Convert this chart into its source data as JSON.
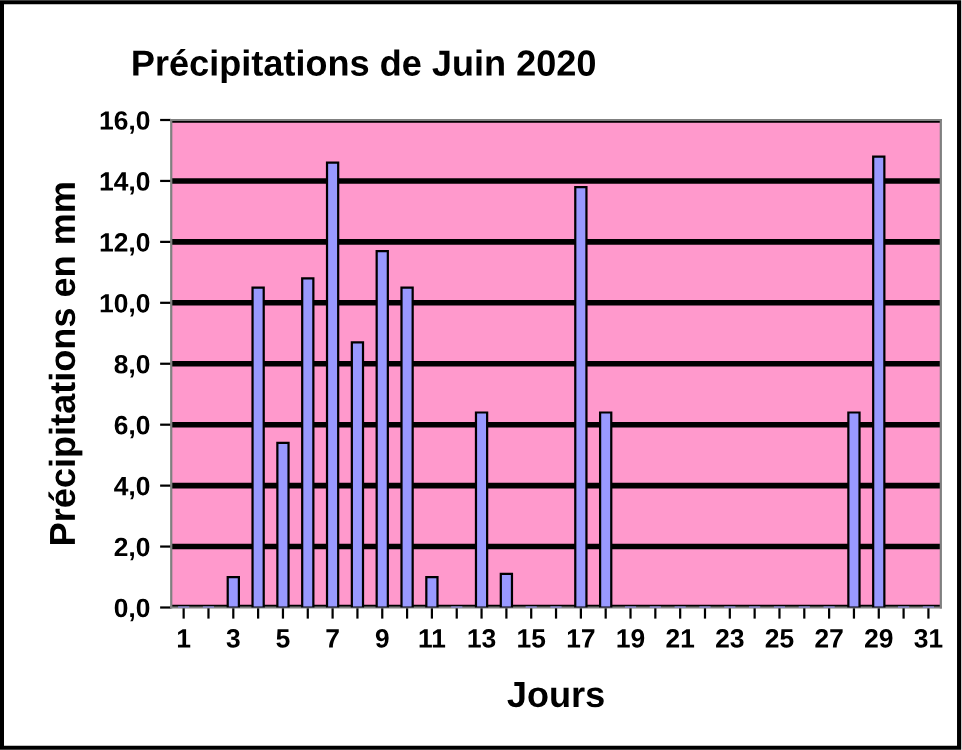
{
  "chart_data": {
    "type": "bar",
    "title": "Précipitations de Juin 2020",
    "xlabel": "Jours",
    "ylabel": "Précipitations en mm",
    "categories": [
      "1",
      null,
      "3",
      null,
      "5",
      null,
      "7",
      null,
      "9",
      null,
      "11",
      null,
      "13",
      null,
      "15",
      null,
      "17",
      null,
      "19",
      null,
      "21",
      null,
      "23",
      null,
      "25",
      null,
      "27",
      null,
      "29",
      null,
      "31"
    ],
    "values": [
      0,
      0,
      1.0,
      10.5,
      5.4,
      10.8,
      14.6,
      8.7,
      11.7,
      10.5,
      1.0,
      0,
      6.4,
      1.1,
      0,
      0,
      13.8,
      6.4,
      0,
      0,
      0,
      0,
      0,
      0,
      0,
      0,
      0,
      6.4,
      14.8,
      0,
      0
    ],
    "color": "#9999ff",
    "ylim": [
      0,
      16
    ],
    "yticks": [
      {
        "value": 0,
        "label": "0,0"
      },
      {
        "value": 2,
        "label": "2,0"
      },
      {
        "value": 4,
        "label": "4,0"
      },
      {
        "value": 6,
        "label": "6,0"
      },
      {
        "value": 8,
        "label": "8,0"
      },
      {
        "value": 10,
        "label": "10,0"
      },
      {
        "value": 12,
        "label": "12,0"
      },
      {
        "value": 14,
        "label": "14,0"
      },
      {
        "value": 16,
        "label": "16,0"
      }
    ],
    "grid": "y"
  }
}
